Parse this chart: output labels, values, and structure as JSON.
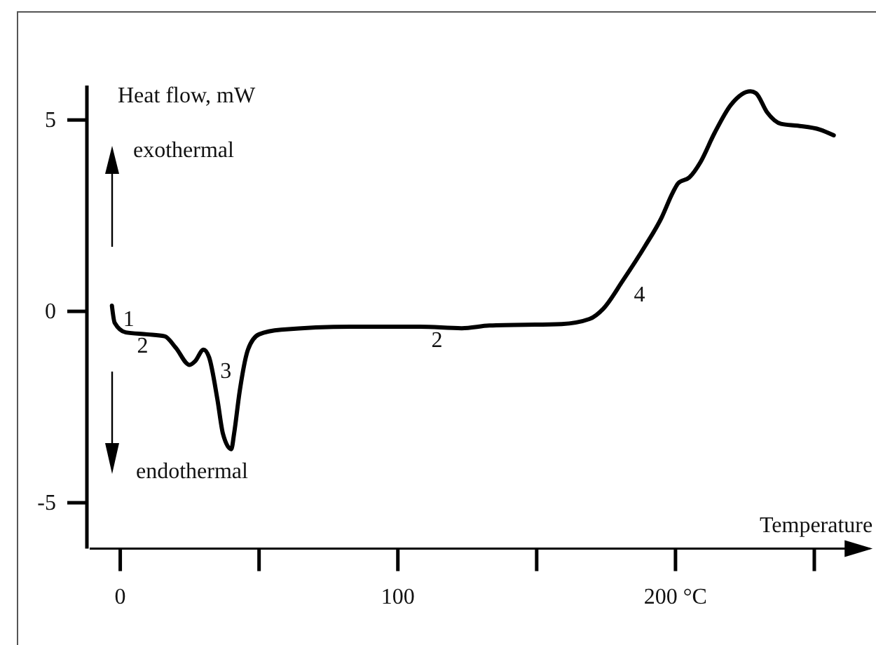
{
  "chart_data": {
    "type": "line",
    "xlabel": "Temperature",
    "ylabel": "Heat flow, mW",
    "xlim": [
      -11,
      270
    ],
    "ylim": [
      -6.2,
      5.9
    ],
    "xticks": [
      0,
      {
        "value": 50,
        "label": null
      },
      100,
      {
        "value": 150,
        "label": null
      },
      {
        "value": 200,
        "label": "200 °C"
      },
      {
        "value": 250,
        "label": null
      }
    ],
    "yticks": [
      -5,
      0,
      5
    ],
    "grid": false,
    "marker": "none",
    "line_style": "solid",
    "series": [
      {
        "color": "#000000",
        "x": [
          -3,
          -2,
          2,
          9.6,
          16,
          20,
          25,
          27,
          30,
          32,
          35,
          37,
          40,
          41,
          43,
          46,
          50,
          58,
          83,
          108,
          123,
          133,
          159,
          169,
          174,
          181,
          189,
          195,
          199,
          201,
          205,
          209,
          214,
          220,
          227,
          229,
          233,
          238,
          244,
          252,
          257
        ],
        "values": [
          0.15,
          -0.3,
          -0.55,
          -0.6,
          -0.65,
          -0.95,
          -1.4,
          -1.3,
          -1.0,
          -1.2,
          -2.3,
          -3.2,
          -3.6,
          -3.2,
          -2.1,
          -1.0,
          -0.6,
          -0.48,
          -0.4,
          -0.4,
          -0.44,
          -0.37,
          -0.33,
          -0.2,
          0.07,
          0.8,
          1.7,
          2.45,
          3.1,
          3.35,
          3.5,
          3.9,
          4.65,
          5.4,
          5.75,
          5.7,
          5.2,
          4.9,
          4.85,
          4.75,
          4.6
        ]
      }
    ],
    "annotations": [
      {
        "text": "1",
        "x": -3,
        "y": 0.15
      },
      {
        "text": "2",
        "x": 2,
        "y": -0.55
      },
      {
        "text": "3",
        "x": 32,
        "y": -1.2
      },
      {
        "text": "2",
        "x": 108,
        "y": -0.4
      },
      {
        "text": "4",
        "x": 181,
        "y": 0.8
      },
      "exothermal",
      "endothermal"
    ]
  }
}
